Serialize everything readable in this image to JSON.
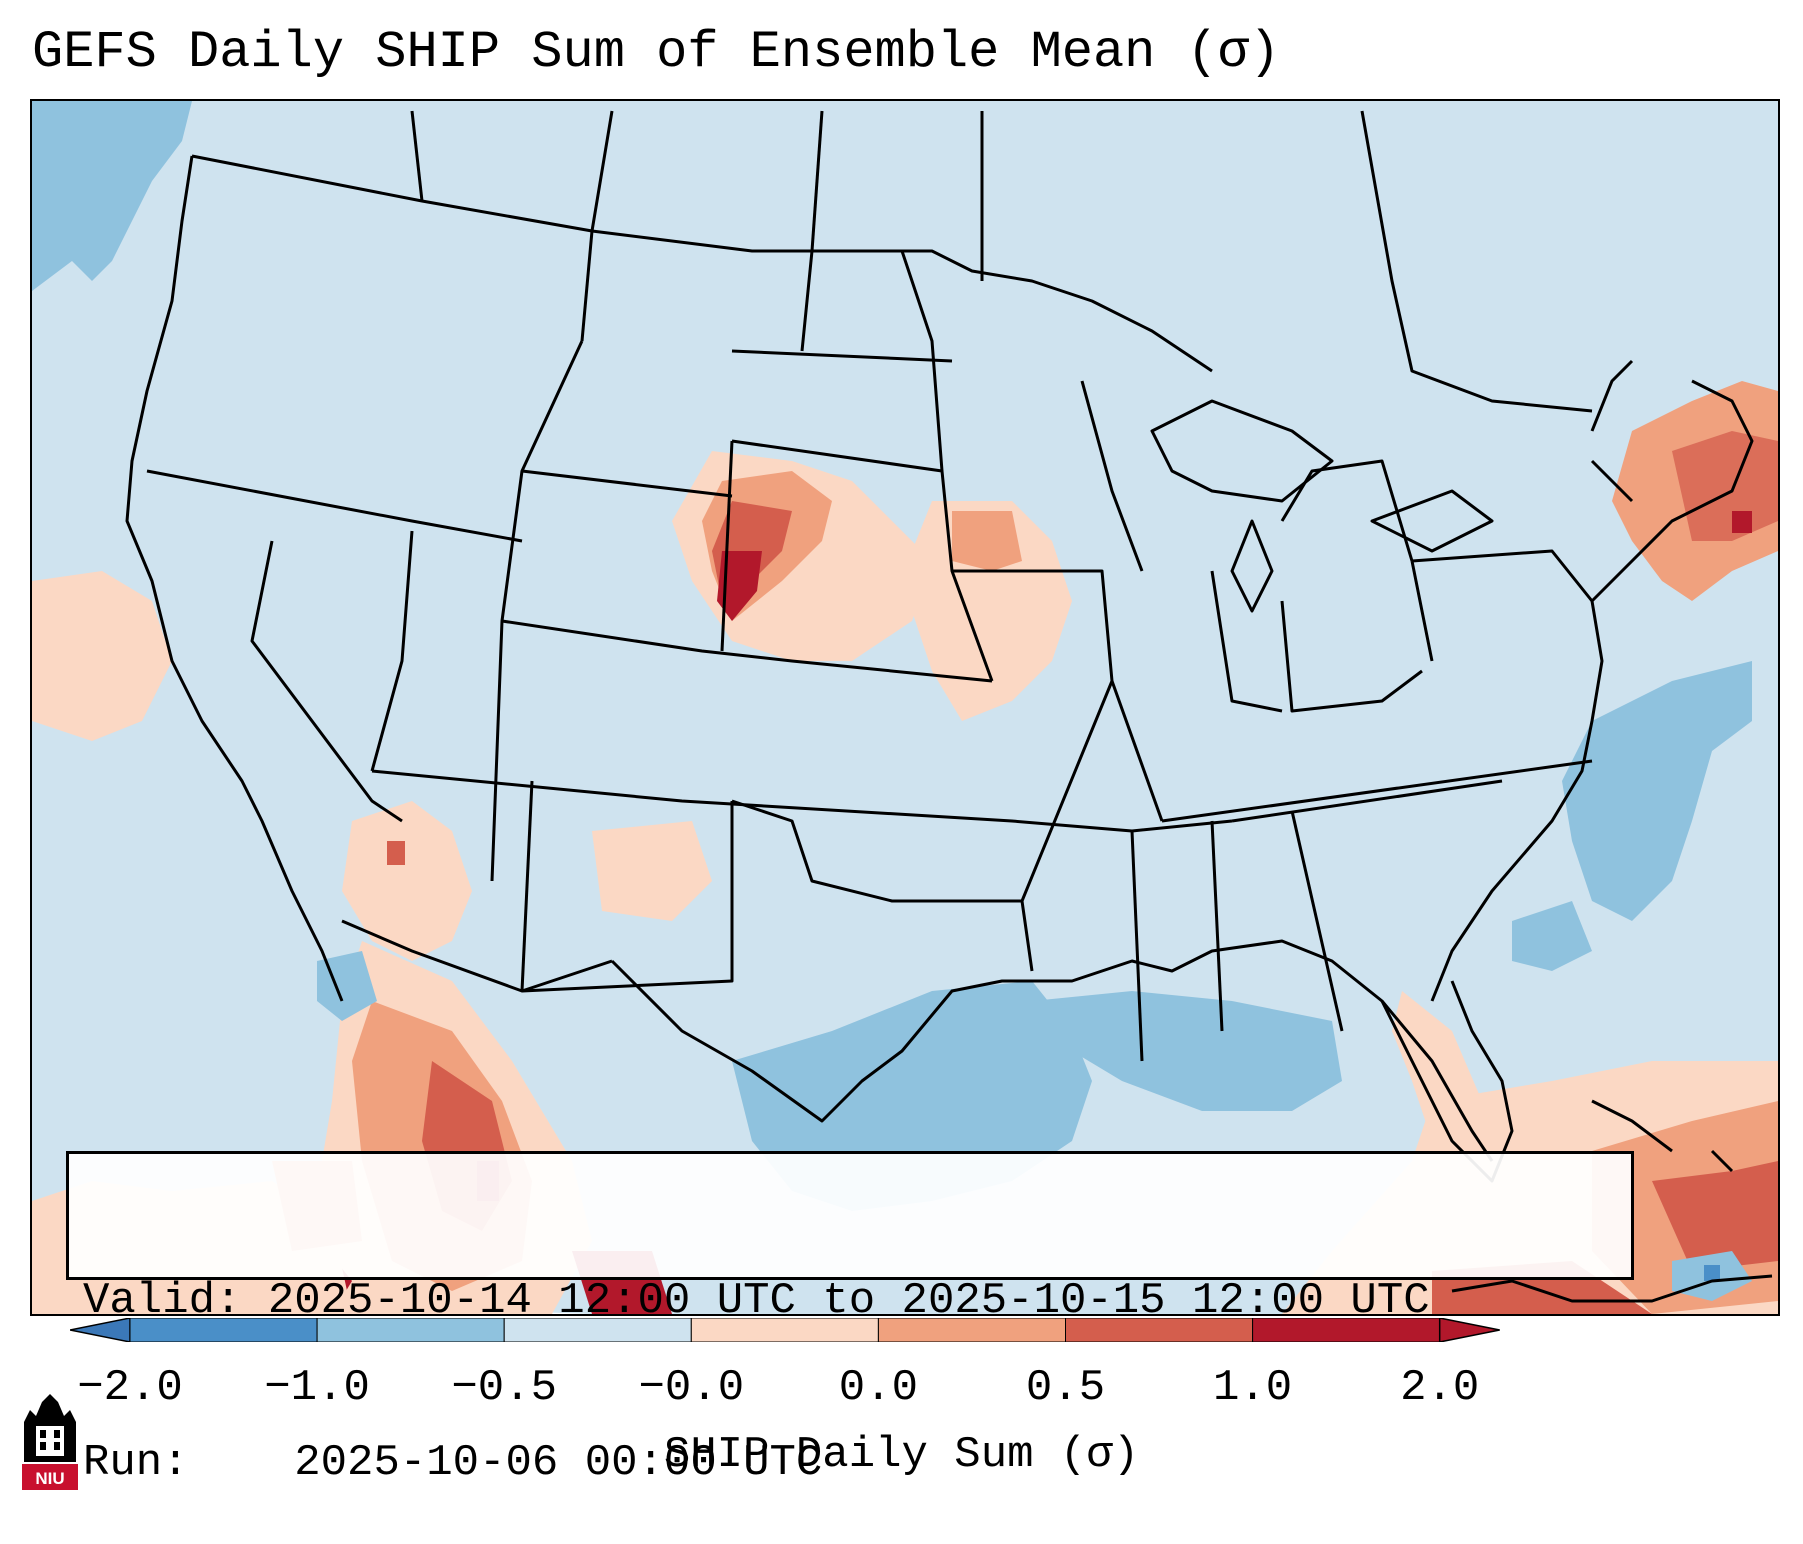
{
  "title": "GEFS Daily SHIP Sum of Ensemble Mean (σ)",
  "info": {
    "valid_label": "Valid:",
    "valid_value": "2025-10-14 12:00 UTC to 2025-10-15 12:00 UTC",
    "run_label": "Run:",
    "run_value": "2025-10-06 00:00 UTC"
  },
  "colorbar": {
    "label": "SHIP Daily Sum (σ)",
    "ticks": [
      "−2.0",
      "−1.0",
      "−0.5",
      "−0.0",
      "0.0",
      "0.5",
      "1.0",
      "2.0"
    ],
    "colors": [
      "#4a8fc8",
      "#8fc2de",
      "#cfe3ef",
      "#fbd8c4",
      "#f0a17e",
      "#d45e4d",
      "#b2182b"
    ],
    "extend_low_color": "#3b78b8",
    "extend_high_color": "#b2182b"
  },
  "map": {
    "background_color": "#cfe3ef",
    "region": "Contiguous United States, Mexico, Gulf of Mexico, Caribbean"
  },
  "logo": {
    "text": "NIU",
    "icon": "niu-logo-icon",
    "color": "#c8102e"
  }
}
